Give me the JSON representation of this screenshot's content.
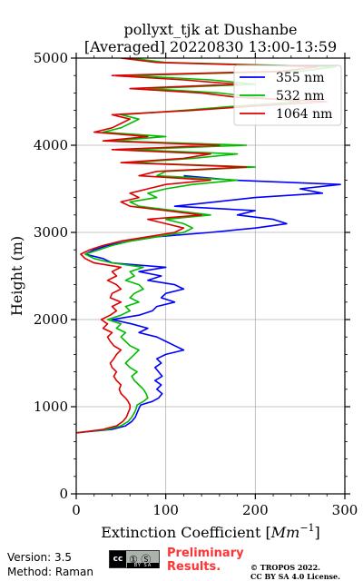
{
  "chart_data": {
    "type": "line",
    "title_line1": "pollyxt_tjk at Dushanbe",
    "title_line2": "[Averaged] 20220830 13:00-13:59",
    "xlabel_prefix": "Extinction Coefficient [",
    "xlabel_unit": "Mm",
    "xlabel_exp": "−1",
    "xlabel_suffix": "]",
    "ylabel": "Height (m)",
    "xlim": [
      0,
      300
    ],
    "ylim": [
      0,
      5000
    ],
    "x_ticks": [
      0,
      100,
      200,
      300
    ],
    "y_ticks": [
      0,
      1000,
      2000,
      3000,
      4000,
      5000
    ],
    "grid": true,
    "legend_position": "top-right",
    "series": [
      {
        "name": "355 nm",
        "color": "#0000ff",
        "points": [
          [
            0,
            700
          ],
          [
            40,
            740
          ],
          [
            55,
            780
          ],
          [
            62,
            830
          ],
          [
            66,
            880
          ],
          [
            68,
            930
          ],
          [
            70,
            980
          ],
          [
            72,
            1020
          ],
          [
            85,
            1060
          ],
          [
            92,
            1100
          ],
          [
            96,
            1150
          ],
          [
            90,
            1200
          ],
          [
            95,
            1250
          ],
          [
            88,
            1300
          ],
          [
            96,
            1350
          ],
          [
            92,
            1400
          ],
          [
            88,
            1450
          ],
          [
            95,
            1500
          ],
          [
            90,
            1550
          ],
          [
            100,
            1600
          ],
          [
            120,
            1650
          ],
          [
            110,
            1700
          ],
          [
            100,
            1750
          ],
          [
            90,
            1800
          ],
          [
            70,
            1850
          ],
          [
            80,
            1900
          ],
          [
            62,
            1950
          ],
          [
            40,
            2000
          ],
          [
            70,
            2050
          ],
          [
            85,
            2100
          ],
          [
            90,
            2150
          ],
          [
            110,
            2200
          ],
          [
            95,
            2250
          ],
          [
            100,
            2300
          ],
          [
            120,
            2350
          ],
          [
            110,
            2400
          ],
          [
            80,
            2450
          ],
          [
            95,
            2500
          ],
          [
            70,
            2550
          ],
          [
            100,
            2600
          ],
          [
            40,
            2650
          ],
          [
            30,
            2700
          ],
          [
            10,
            2750
          ],
          [
            20,
            2800
          ],
          [
            35,
            2850
          ],
          [
            60,
            2900
          ],
          [
            90,
            2950
          ],
          [
            150,
            3000
          ],
          [
            200,
            3050
          ],
          [
            235,
            3100
          ],
          [
            220,
            3150
          ],
          [
            180,
            3200
          ],
          [
            200,
            3250
          ],
          [
            110,
            3300
          ],
          [
            155,
            3350
          ],
          [
            200,
            3400
          ],
          [
            275,
            3450
          ],
          [
            250,
            3500
          ],
          [
            295,
            3550
          ],
          [
            175,
            3600
          ],
          [
            120,
            3650
          ]
        ]
      },
      {
        "name": "532 nm",
        "color": "#00bb00",
        "points": [
          [
            0,
            700
          ],
          [
            35,
            740
          ],
          [
            50,
            780
          ],
          [
            58,
            830
          ],
          [
            62,
            880
          ],
          [
            65,
            930
          ],
          [
            67,
            980
          ],
          [
            68,
            1020
          ],
          [
            75,
            1060
          ],
          [
            80,
            1100
          ],
          [
            78,
            1150
          ],
          [
            75,
            1200
          ],
          [
            70,
            1250
          ],
          [
            65,
            1300
          ],
          [
            62,
            1350
          ],
          [
            68,
            1400
          ],
          [
            60,
            1450
          ],
          [
            55,
            1500
          ],
          [
            60,
            1550
          ],
          [
            65,
            1600
          ],
          [
            70,
            1650
          ],
          [
            60,
            1700
          ],
          [
            55,
            1750
          ],
          [
            50,
            1800
          ],
          [
            55,
            1850
          ],
          [
            45,
            1900
          ],
          [
            50,
            1950
          ],
          [
            35,
            2000
          ],
          [
            50,
            2050
          ],
          [
            60,
            2100
          ],
          [
            55,
            2150
          ],
          [
            70,
            2200
          ],
          [
            60,
            2250
          ],
          [
            65,
            2300
          ],
          [
            75,
            2350
          ],
          [
            70,
            2400
          ],
          [
            55,
            2450
          ],
          [
            65,
            2500
          ],
          [
            60,
            2550
          ],
          [
            75,
            2600
          ],
          [
            40,
            2650
          ],
          [
            20,
            2700
          ],
          [
            10,
            2750
          ],
          [
            25,
            2800
          ],
          [
            40,
            2850
          ],
          [
            60,
            2900
          ],
          [
            90,
            2950
          ],
          [
            120,
            3000
          ],
          [
            130,
            3050
          ],
          [
            120,
            3100
          ],
          [
            100,
            3150
          ],
          [
            150,
            3200
          ],
          [
            110,
            3250
          ],
          [
            70,
            3300
          ],
          [
            60,
            3350
          ],
          [
            90,
            3400
          ],
          [
            80,
            3450
          ],
          [
            100,
            3500
          ],
          [
            130,
            3550
          ],
          [
            180,
            3600
          ],
          [
            90,
            3650
          ],
          [
            100,
            3700
          ],
          [
            200,
            3750
          ],
          [
            60,
            3800
          ],
          [
            130,
            3850
          ],
          [
            180,
            3900
          ],
          [
            60,
            3950
          ],
          [
            190,
            4000
          ],
          [
            40,
            4050
          ],
          [
            100,
            4100
          ],
          [
            30,
            4150
          ],
          [
            50,
            4200
          ],
          [
            60,
            4250
          ],
          [
            70,
            4300
          ],
          [
            50,
            4350
          ],
          [
            120,
            4400
          ],
          [
            180,
            4450
          ],
          [
            250,
            4500
          ],
          [
            200,
            4550
          ],
          [
            160,
            4600
          ],
          [
            80,
            4650
          ],
          [
            200,
            4700
          ],
          [
            150,
            4750
          ],
          [
            60,
            4800
          ],
          [
            250,
            4850
          ],
          [
            290,
            4900
          ],
          [
            100,
            4950
          ],
          [
            60,
            5000
          ]
        ]
      },
      {
        "name": "1064 nm",
        "color": "#dd0000",
        "points": [
          [
            0,
            700
          ],
          [
            30,
            740
          ],
          [
            45,
            780
          ],
          [
            52,
            830
          ],
          [
            56,
            880
          ],
          [
            58,
            930
          ],
          [
            60,
            980
          ],
          [
            60,
            1020
          ],
          [
            58,
            1060
          ],
          [
            55,
            1100
          ],
          [
            50,
            1150
          ],
          [
            48,
            1200
          ],
          [
            50,
            1250
          ],
          [
            45,
            1300
          ],
          [
            42,
            1350
          ],
          [
            45,
            1400
          ],
          [
            40,
            1450
          ],
          [
            38,
            1500
          ],
          [
            42,
            1550
          ],
          [
            45,
            1600
          ],
          [
            50,
            1650
          ],
          [
            42,
            1700
          ],
          [
            38,
            1750
          ],
          [
            35,
            1800
          ],
          [
            40,
            1850
          ],
          [
            30,
            1900
          ],
          [
            35,
            1950
          ],
          [
            28,
            2000
          ],
          [
            38,
            2050
          ],
          [
            45,
            2100
          ],
          [
            40,
            2150
          ],
          [
            50,
            2200
          ],
          [
            38,
            2250
          ],
          [
            40,
            2300
          ],
          [
            50,
            2350
          ],
          [
            45,
            2400
          ],
          [
            35,
            2450
          ],
          [
            45,
            2500
          ],
          [
            40,
            2550
          ],
          [
            50,
            2600
          ],
          [
            20,
            2650
          ],
          [
            10,
            2700
          ],
          [
            5,
            2750
          ],
          [
            15,
            2800
          ],
          [
            30,
            2850
          ],
          [
            50,
            2900
          ],
          [
            80,
            2950
          ],
          [
            110,
            3000
          ],
          [
            120,
            3050
          ],
          [
            100,
            3100
          ],
          [
            80,
            3150
          ],
          [
            140,
            3200
          ],
          [
            100,
            3250
          ],
          [
            60,
            3300
          ],
          [
            50,
            3350
          ],
          [
            70,
            3400
          ],
          [
            60,
            3450
          ],
          [
            80,
            3500
          ],
          [
            100,
            3550
          ],
          [
            150,
            3600
          ],
          [
            70,
            3650
          ],
          [
            90,
            3700
          ],
          [
            190,
            3750
          ],
          [
            50,
            3800
          ],
          [
            120,
            3850
          ],
          [
            150,
            3900
          ],
          [
            40,
            3950
          ],
          [
            160,
            4000
          ],
          [
            30,
            4050
          ],
          [
            80,
            4100
          ],
          [
            20,
            4150
          ],
          [
            40,
            4200
          ],
          [
            50,
            4250
          ],
          [
            60,
            4300
          ],
          [
            40,
            4350
          ],
          [
            130,
            4400
          ],
          [
            200,
            4450
          ],
          [
            280,
            4500
          ],
          [
            180,
            4550
          ],
          [
            140,
            4600
          ],
          [
            60,
            4650
          ],
          [
            180,
            4700
          ],
          [
            120,
            4750
          ],
          [
            40,
            4800
          ],
          [
            230,
            4850
          ],
          [
            270,
            4900
          ],
          [
            90,
            4950
          ],
          [
            50,
            5000
          ]
        ]
      }
    ]
  },
  "footer": {
    "version": "Version: 3.5",
    "method": "Method: Raman",
    "cc_badge_letters": "cc",
    "cc_badge_icons": "① Ⓢ",
    "cc_badge_bottom": "BY SA",
    "preliminary_line1": "Preliminary",
    "preliminary_line2": "Results.",
    "copyright_line1": "© TROPOS 2022.",
    "copyright_line2": "CC BY SA 4.0 License."
  }
}
